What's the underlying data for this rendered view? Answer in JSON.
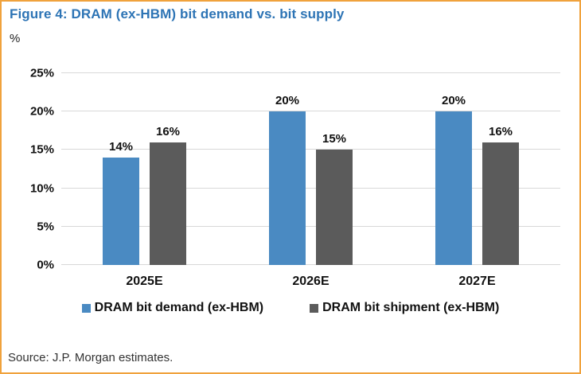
{
  "figure": {
    "title": "Figure 4: DRAM (ex-HBM) bit demand vs. bit supply",
    "unit_label": "%",
    "source": "Source: J.P. Morgan estimates."
  },
  "colors": {
    "title_blue": "#2D74B5",
    "demand": "#4A8AC2",
    "shipment": "#5B5B5B",
    "gridline": "#D8D8D8",
    "frame_border": "#F0A23C",
    "label_text": "#111111"
  },
  "chart_data": {
    "type": "bar",
    "title": "Figure 4: DRAM (ex-HBM) bit demand vs. bit supply",
    "xlabel": "",
    "ylabel": "%",
    "categories": [
      "2025E",
      "2026E",
      "2027E"
    ],
    "series": [
      {
        "name": "DRAM bit demand (ex-HBM)",
        "color_key": "demand",
        "values": [
          14,
          20,
          20
        ]
      },
      {
        "name": "DRAM bit shipment (ex-HBM)",
        "color_key": "shipment",
        "values": [
          16,
          15,
          16
        ]
      }
    ],
    "data_labels": [
      [
        "14%",
        "20%",
        "20%"
      ],
      [
        "16%",
        "15%",
        "16%"
      ]
    ],
    "ylim": [
      0,
      25
    ],
    "ytick_step": 5,
    "ytick_labels": [
      "0%",
      "5%",
      "10%",
      "15%",
      "20%",
      "25%"
    ],
    "grid": true,
    "legend_position": "bottom",
    "source": "Source: J.P. Morgan estimates."
  }
}
